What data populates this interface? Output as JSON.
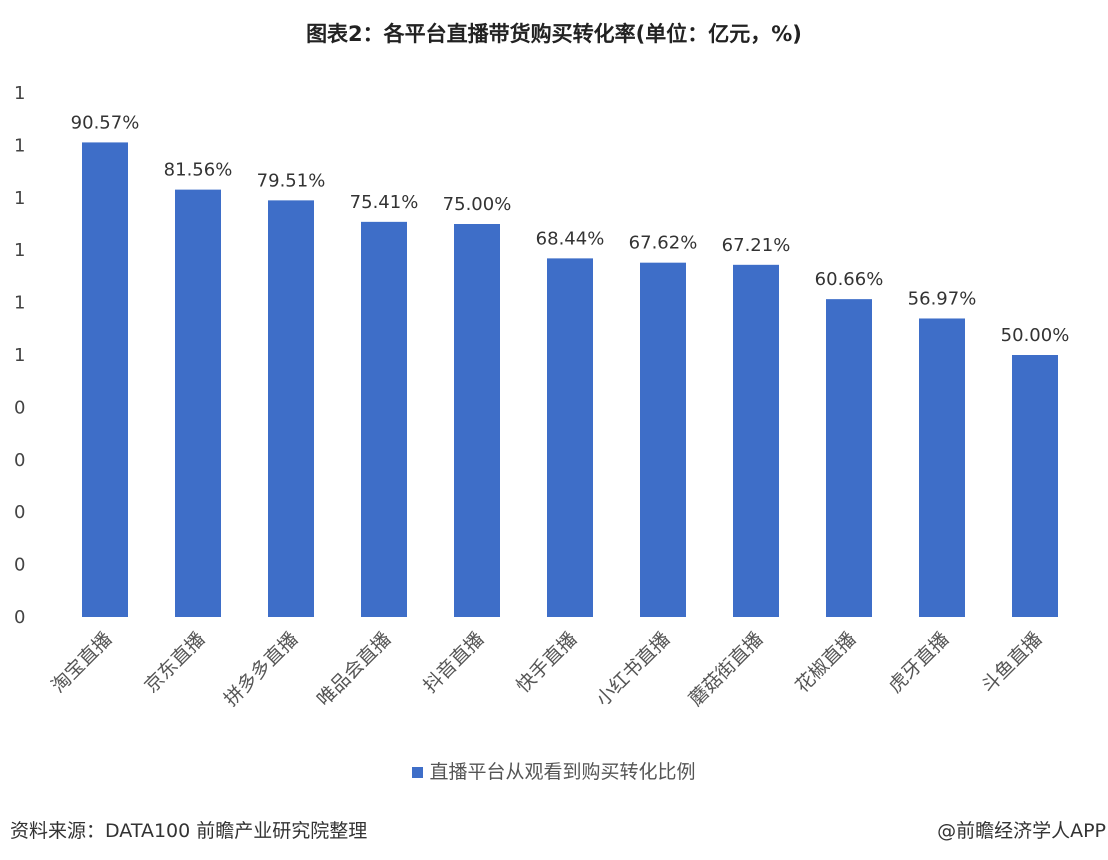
{
  "title": "图表2：各平台直播带货购买转化率(单位：亿元，%)",
  "chart_data": {
    "type": "bar",
    "title": "图表2：各平台直播带货购买转化率(单位：亿元，%)",
    "categories": [
      "淘宝直播",
      "京东直播",
      "拼多多直播",
      "唯品会直播",
      "抖音直播",
      "快手直播",
      "小红书直播",
      "蘑菇街直播",
      "花椒直播",
      "虎牙直播",
      "斗鱼直播"
    ],
    "series": [
      {
        "name": "直播平台从观看到购买转化比例",
        "values": [
          90.57,
          81.56,
          79.51,
          75.41,
          75.0,
          68.44,
          67.62,
          67.21,
          60.66,
          56.97,
          50.0
        ]
      }
    ],
    "data_labels": [
      "90.57%",
      "81.56%",
      "79.51%",
      "75.41%",
      "75.00%",
      "68.44%",
      "67.62%",
      "67.21%",
      "60.66%",
      "56.97%",
      "50.00%"
    ],
    "y_ticks": [
      0,
      0.1,
      0.2,
      0.3,
      0.4,
      0.5,
      0.6,
      0.7,
      0.8,
      0.9,
      1.0
    ],
    "y_tick_labels": [
      "0",
      "0",
      "0",
      "0",
      "0",
      "1",
      "1",
      "1",
      "1",
      "1",
      "1"
    ],
    "ylim": [
      0,
      1.0
    ],
    "grid": false,
    "legend_position": "bottom",
    "bar_color": "#3e6ec8"
  },
  "legend_label": "直播平台从观看到购买转化比例",
  "source": "资料来源：DATA100 前瞻产业研究院整理",
  "credit": "@前瞻经济学人APP"
}
